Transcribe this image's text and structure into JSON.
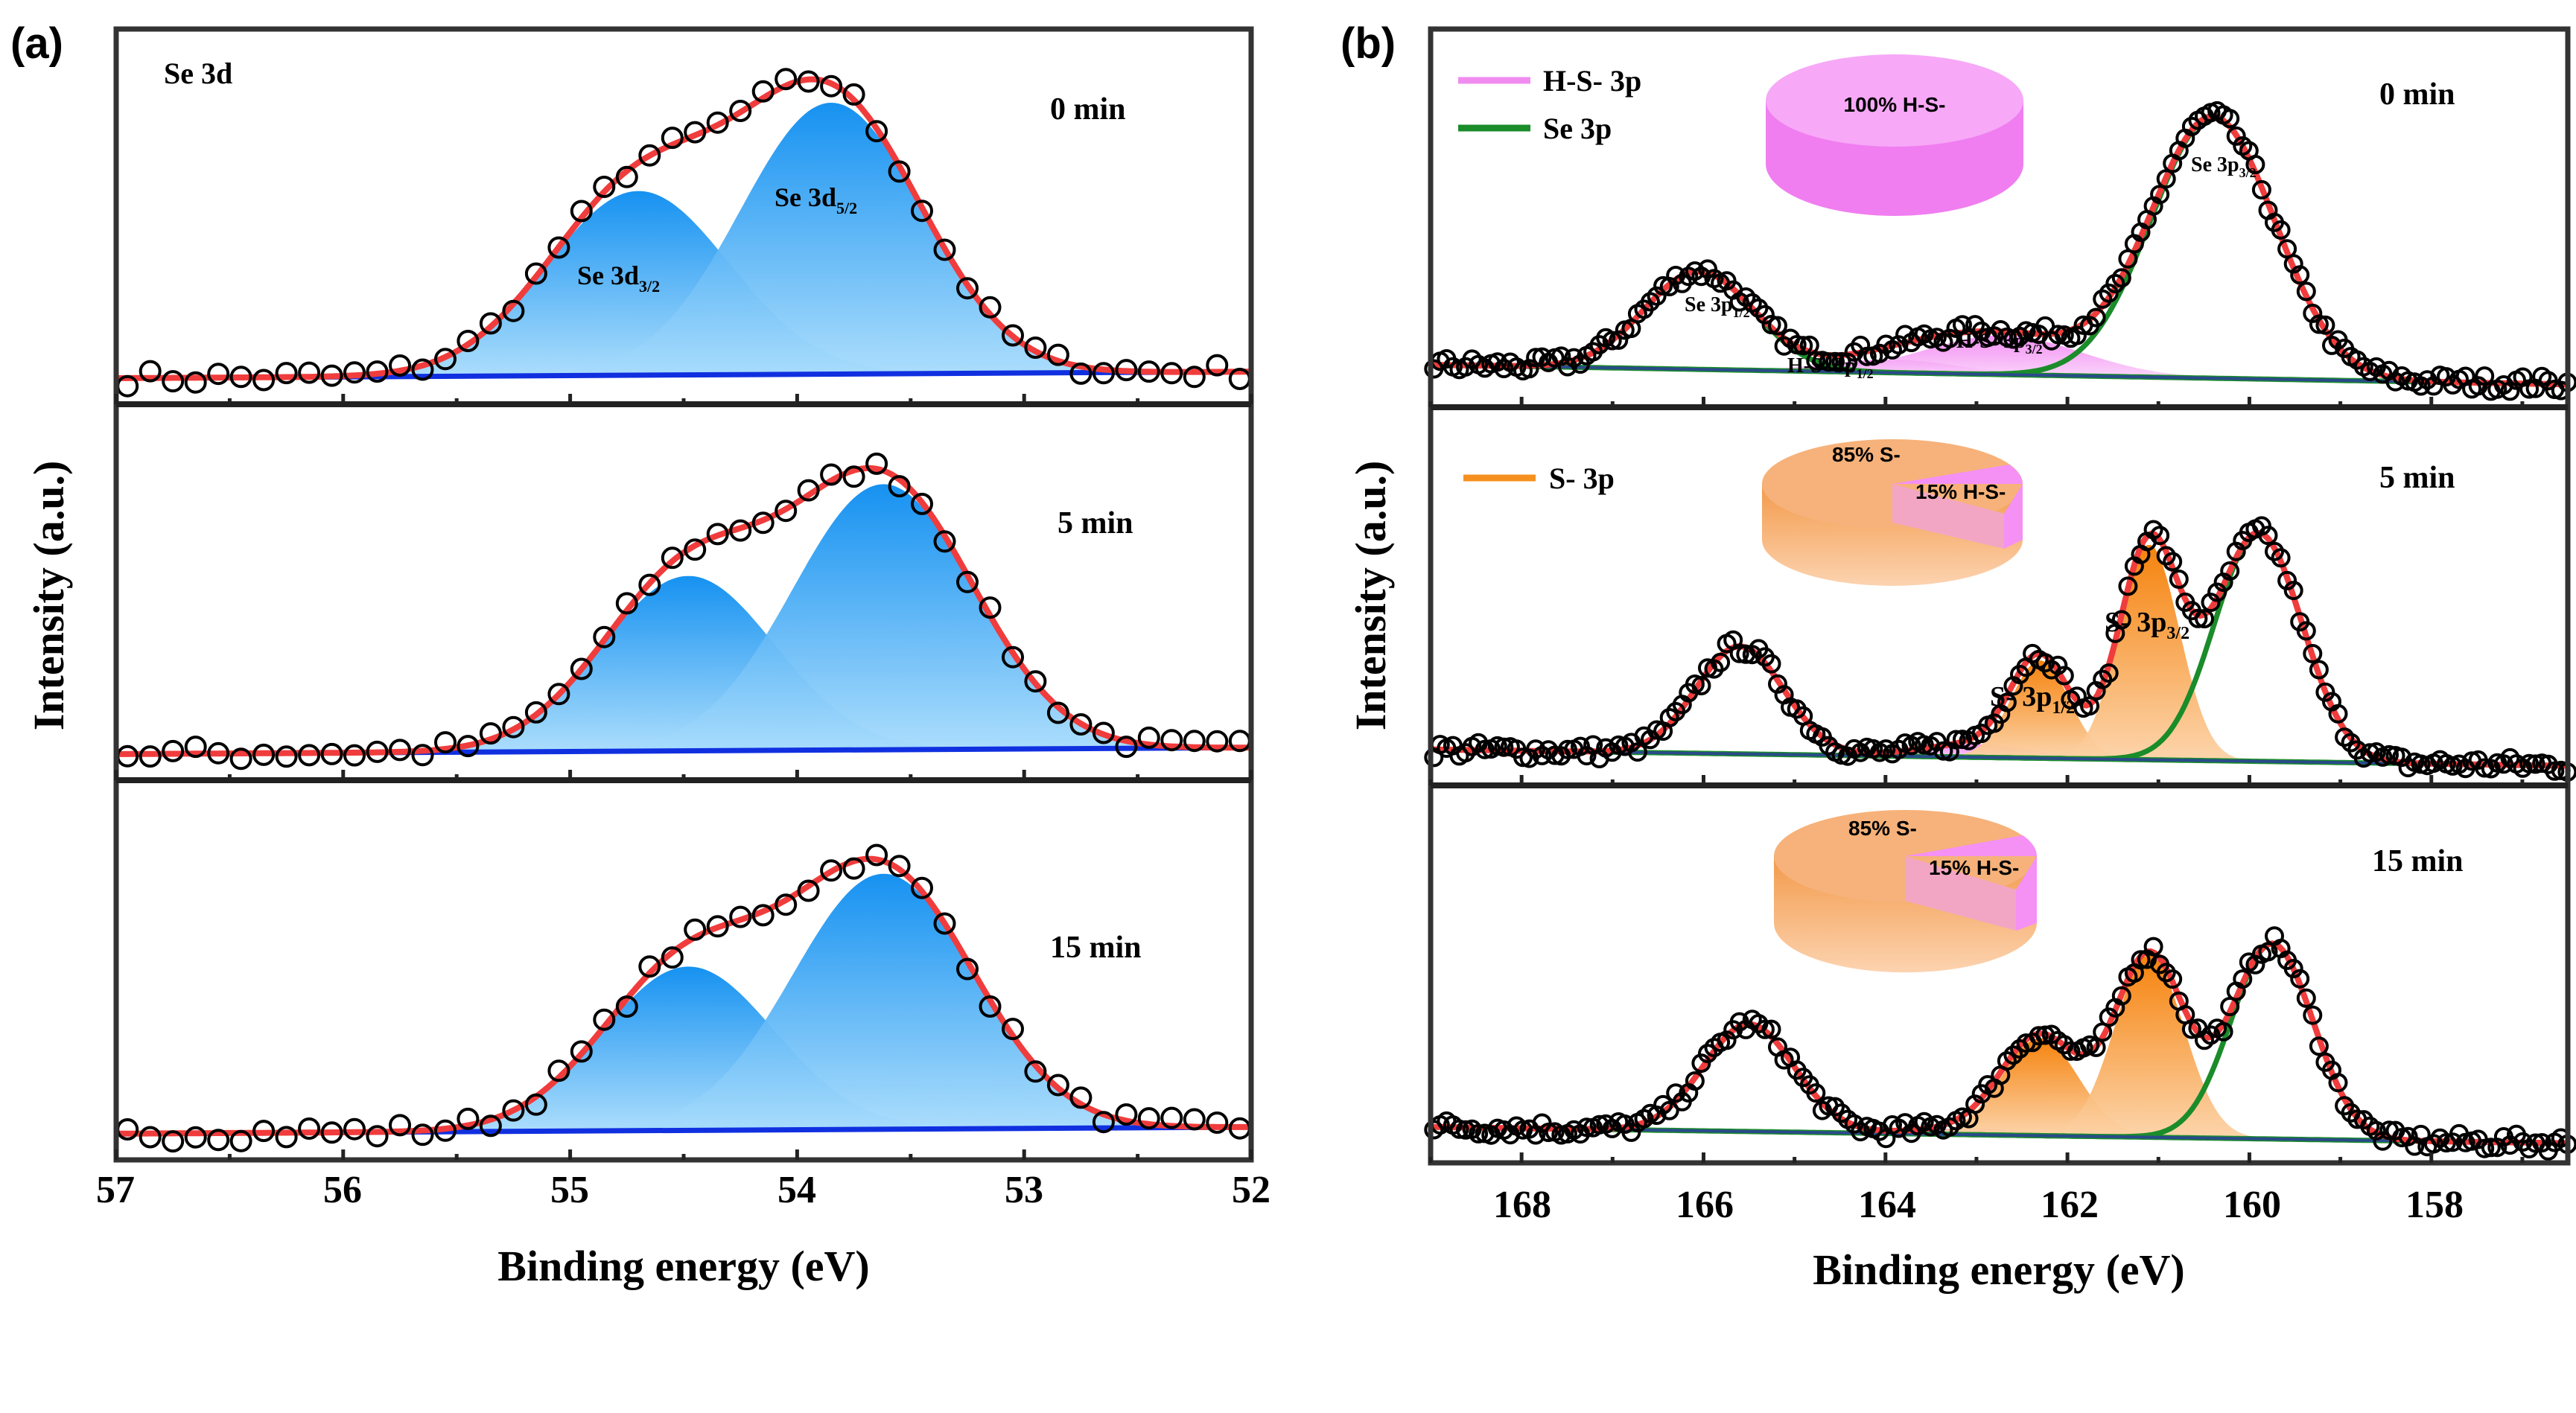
{
  "panels": [
    {
      "label": "(a)",
      "title": "Se 3d",
      "xlabel": "Binding energy (eV)",
      "ylabel": "Intensity (a.u.)",
      "xlim": [
        57,
        52
      ],
      "xticks": [
        "57",
        "56",
        "55",
        "54",
        "53",
        "52"
      ],
      "peak_labels": {
        "se3d32": {
          "main": "Se 3d",
          "sub": "3/2"
        },
        "se3d52": {
          "main": "Se 3d",
          "sub": "5/2"
        }
      },
      "legend": []
    },
    {
      "label": "(b)",
      "xlabel": "Binding energy (eV)",
      "ylabel": "Intensity (a.u.)",
      "xlim": [
        169,
        156.5
      ],
      "xticks": [
        "168",
        "166",
        "164",
        "162",
        "160",
        "158"
      ],
      "legend": [
        {
          "label": "H-S- 3p",
          "color": "#f08cf0"
        },
        {
          "label": "Se 3p",
          "color": "#1a8c2a"
        },
        {
          "label": "S- 3p",
          "color": "#f5901e"
        }
      ],
      "peak_labels": {
        "se3p12": {
          "main": "Se 3p",
          "sub": "1/2"
        },
        "se3p32": {
          "main": "Se 3p",
          "sub": "3/2"
        },
        "hs3p12": {
          "main": "H-S- 3p",
          "sub": "1/2"
        },
        "hs3p32": {
          "main": "H-S- 3p",
          "sub": "3/2"
        },
        "s3p12": {
          "main": "S- 3p",
          "sub": "1/2"
        },
        "s3p32": {
          "main": "S- 3p",
          "sub": "3/2"
        }
      },
      "pies": [
        {
          "slices": [
            {
              "label": "100% H-S-",
              "value": 100,
              "color": "#f590f5"
            }
          ]
        },
        {
          "slices": [
            {
              "label": "85% S-",
              "value": 85,
              "color": "#f7a661"
            },
            {
              "label": "15% H-S-",
              "value": 15,
              "color": "#f590f5"
            }
          ]
        },
        {
          "slices": [
            {
              "label": "85% S-",
              "value": 85,
              "color": "#f7a661"
            },
            {
              "label": "15% H-S-",
              "value": 15,
              "color": "#f590f5"
            }
          ]
        }
      ]
    }
  ],
  "colors": {
    "envelope": "#f03c3c",
    "baseline_a": "#1030e0",
    "baseline_b": "#2a4a8a",
    "se3d_fill": "#1a90f0",
    "s_fill": "#f5840a",
    "hs_fill": "#f08cf0",
    "se3p_line": "#1a8c2a",
    "points": "#000000"
  },
  "chart_data": [
    {
      "type": "area",
      "panel": "a",
      "xlabel": "Binding energy (eV)",
      "ylabel": "Intensity (a.u.)",
      "xlim": [
        57,
        52
      ],
      "grid": false,
      "subplots": [
        {
          "time": "0 min",
          "baseline": [
            0.03,
            0.05
          ],
          "components": [
            {
              "name": "Se 3d3/2",
              "center": 54.7,
              "amp": 0.57,
              "sigma": 0.4,
              "style": "fill-blue"
            },
            {
              "name": "Se 3d5/2",
              "center": 53.85,
              "amp": 0.84,
              "sigma": 0.4,
              "style": "fill-blue"
            }
          ]
        },
        {
          "time": "5 min",
          "baseline": [
            0.03,
            0.05
          ],
          "components": [
            {
              "name": "Se 3d3/2",
              "center": 54.48,
              "amp": 0.54,
              "sigma": 0.38,
              "style": "fill-blue"
            },
            {
              "name": "Se 3d5/2",
              "center": 53.62,
              "amp": 0.82,
              "sigma": 0.4,
              "style": "fill-blue"
            }
          ]
        },
        {
          "time": "15 min",
          "baseline": [
            0.03,
            0.05
          ],
          "components": [
            {
              "name": "Se 3d3/2",
              "center": 54.48,
              "amp": 0.5,
              "sigma": 0.38,
              "style": "fill-blue"
            },
            {
              "name": "Se 3d5/2",
              "center": 53.62,
              "amp": 0.78,
              "sigma": 0.4,
              "style": "fill-blue"
            }
          ]
        }
      ]
    },
    {
      "type": "area",
      "panel": "b",
      "xlabel": "Binding energy (eV)",
      "ylabel": "Intensity (a.u.)",
      "xlim": [
        169,
        156.5
      ],
      "grid": false,
      "subplots": [
        {
          "time": "0 min",
          "baseline": [
            0.08,
            0.02
          ],
          "components": [
            {
              "name": "H-S- 3p1/2",
              "center": 163.9,
              "amp": 0.04,
              "sigma": 0.7,
              "style": "fill-pink"
            },
            {
              "name": "H-S- 3p3/2",
              "center": 162.7,
              "amp": 0.12,
              "sigma": 0.85,
              "style": "fill-pink"
            },
            {
              "name": "Se 3p1/2",
              "center": 166.05,
              "amp": 0.3,
              "sigma": 0.6,
              "style": "line-green"
            },
            {
              "name": "Se 3p3/2",
              "center": 160.4,
              "amp": 0.8,
              "sigma": 0.68,
              "style": "line-green"
            }
          ]
        },
        {
          "time": "5 min",
          "baseline": [
            0.06,
            0.01
          ],
          "components": [
            {
              "name": "H-S- 3p",
              "center": 163.0,
              "amp": 0.04,
              "sigma": 0.6,
              "style": "fill-pink"
            },
            {
              "name": "S- 3p1/2",
              "center": 162.3,
              "amp": 0.3,
              "sigma": 0.32,
              "style": "fill-orange"
            },
            {
              "name": "S- 3p3/2",
              "center": 161.1,
              "amp": 0.66,
              "sigma": 0.33,
              "style": "fill-orange"
            },
            {
              "name": "Se 3p1/2",
              "center": 165.6,
              "amp": 0.33,
              "sigma": 0.48,
              "style": "line-green"
            },
            {
              "name": "Se 3p3/2",
              "center": 159.9,
              "amp": 0.7,
              "sigma": 0.48,
              "style": "line-green"
            }
          ]
        },
        {
          "time": "15 min",
          "baseline": [
            0.06,
            0.01
          ],
          "components": [
            {
              "name": "H-S- 3p",
              "center": 163.0,
              "amp": 0.02,
              "sigma": 0.6,
              "style": "fill-pink"
            },
            {
              "name": "S- 3p1/2",
              "center": 162.3,
              "amp": 0.3,
              "sigma": 0.42,
              "style": "fill-orange"
            },
            {
              "name": "S- 3p3/2",
              "center": 161.1,
              "amp": 0.56,
              "sigma": 0.38,
              "style": "fill-orange"
            },
            {
              "name": "Se 3p1/2",
              "center": 165.5,
              "amp": 0.33,
              "sigma": 0.5,
              "style": "line-green"
            },
            {
              "name": "Se 3p3/2",
              "center": 159.75,
              "amp": 0.6,
              "sigma": 0.45,
              "style": "line-green"
            }
          ]
        }
      ]
    }
  ]
}
